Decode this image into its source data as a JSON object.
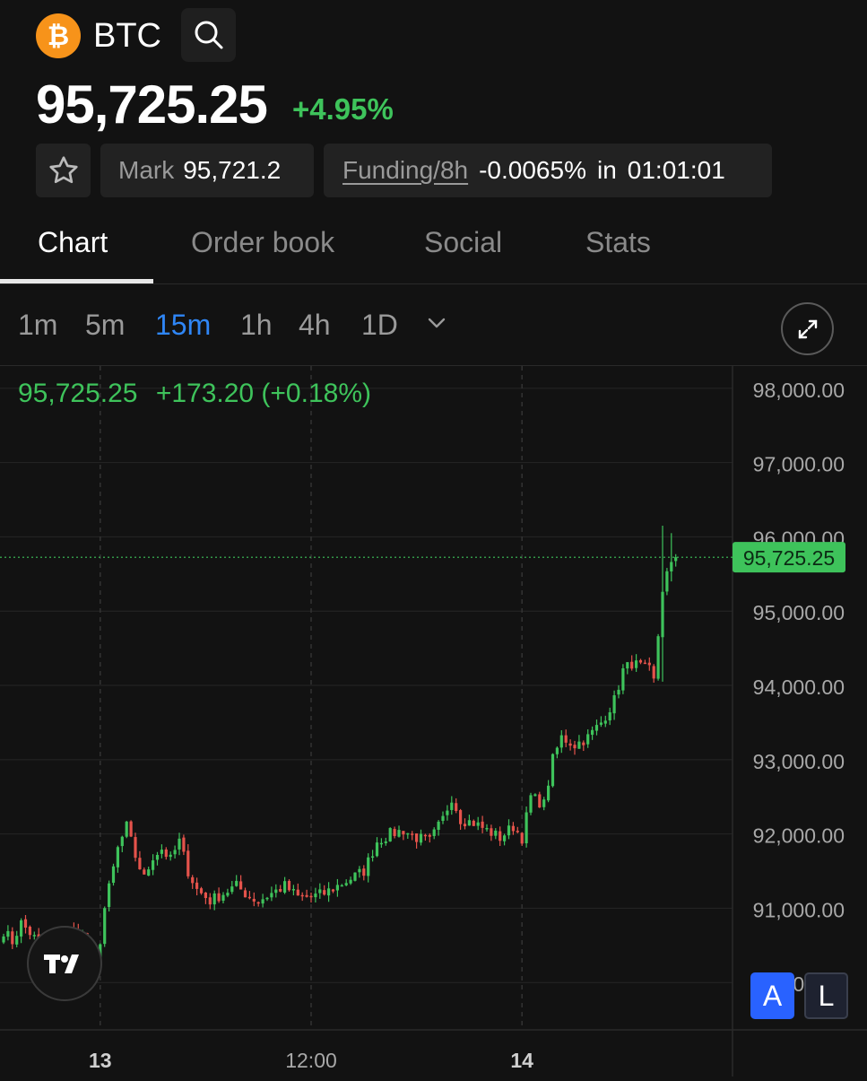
{
  "header": {
    "symbol": "BTC",
    "coin_icon": "bitcoin-icon",
    "search_icon": "search-icon"
  },
  "price": {
    "last": "95,725.25",
    "change_pct": "+4.95%"
  },
  "info": {
    "favorite_icon": "star-icon",
    "mark_label": "Mark",
    "mark_value": "95,721.2",
    "funding_label": "Funding/8h",
    "funding_value": "-0.0065%",
    "funding_in": "in",
    "funding_countdown": "01:01:01"
  },
  "tabs": [
    {
      "label": "Chart",
      "active": true
    },
    {
      "label": "Order book",
      "active": false
    },
    {
      "label": "Social",
      "active": false
    },
    {
      "label": "Stats",
      "active": false
    }
  ],
  "timeframes": [
    {
      "label": "1m",
      "active": false
    },
    {
      "label": "5m",
      "active": false
    },
    {
      "label": "15m",
      "active": true
    },
    {
      "label": "1h",
      "active": false
    },
    {
      "label": "4h",
      "active": false
    },
    {
      "label": "1D",
      "active": false
    }
  ],
  "timeframe_more_icon": "chevron-down-icon",
  "expand_icon": "expand-icon",
  "legend": {
    "price": "95,725.25",
    "change": "+173.20 (+0.18%)"
  },
  "scale_buttons": {
    "auto": "A",
    "log": "L"
  },
  "colors": {
    "up": "#3ec35b",
    "down": "#e5534b",
    "accent": "#2f86f6",
    "background": "#121212"
  },
  "chart_data": {
    "type": "candlestick",
    "interval": "15m",
    "y_ticks": [
      "98,000.00",
      "97,000.00",
      "96,000.00",
      "95,000.00",
      "94,000.00",
      "93,000.00",
      "92,000.00",
      "91,000.00",
      "90,000.00"
    ],
    "y_tick_values": [
      98000,
      97000,
      96000,
      95000,
      94000,
      93000,
      92000,
      91000,
      90000
    ],
    "ylim": [
      89000,
      98300
    ],
    "x_ticks": [
      {
        "label": "13",
        "bold": true,
        "index": 22
      },
      {
        "label": "12:00",
        "bold": false,
        "index": 70
      },
      {
        "label": "14",
        "bold": true,
        "index": 118
      }
    ],
    "last_price_label": "95,725.25",
    "last_price": 95725.25,
    "grid": true,
    "candle_count": 154,
    "anchors": [
      [
        0,
        90700
      ],
      [
        2,
        90550
      ],
      [
        4,
        90800
      ],
      [
        7,
        90600
      ],
      [
        9,
        90500
      ],
      [
        11,
        90450
      ],
      [
        14,
        90700
      ],
      [
        17,
        90650
      ],
      [
        19,
        90600
      ],
      [
        21,
        90150
      ],
      [
        23,
        91000
      ],
      [
        26,
        91800
      ],
      [
        28,
        92100
      ],
      [
        30,
        91700
      ],
      [
        32,
        91400
      ],
      [
        34,
        91700
      ],
      [
        36,
        91800
      ],
      [
        38,
        91650
      ],
      [
        40,
        91900
      ],
      [
        42,
        91500
      ],
      [
        44,
        91250
      ],
      [
        47,
        91100
      ],
      [
        50,
        91200
      ],
      [
        53,
        91300
      ],
      [
        56,
        91150
      ],
      [
        58,
        91100
      ],
      [
        61,
        91200
      ],
      [
        64,
        91300
      ],
      [
        67,
        91150
      ],
      [
        70,
        91150
      ],
      [
        73,
        91200
      ],
      [
        76,
        91300
      ],
      [
        79,
        91400
      ],
      [
        82,
        91500
      ],
      [
        85,
        91900
      ],
      [
        88,
        92000
      ],
      [
        91,
        92050
      ],
      [
        94,
        91950
      ],
      [
        97,
        91900
      ],
      [
        100,
        92200
      ],
      [
        102,
        92500
      ],
      [
        104,
        92200
      ],
      [
        107,
        92150
      ],
      [
        110,
        92050
      ],
      [
        113,
        91950
      ],
      [
        116,
        92100
      ],
      [
        118,
        91950
      ],
      [
        120,
        92500
      ],
      [
        123,
        92400
      ],
      [
        125,
        93000
      ],
      [
        127,
        93300
      ],
      [
        130,
        93200
      ],
      [
        133,
        93300
      ],
      [
        136,
        93500
      ],
      [
        139,
        93800
      ],
      [
        141,
        94200
      ],
      [
        143,
        94300
      ],
      [
        145,
        94250
      ],
      [
        147,
        94200
      ],
      [
        148,
        94050
      ],
      [
        150,
        95300
      ],
      [
        151,
        95500
      ],
      [
        152,
        95600
      ],
      [
        153,
        95725.25
      ]
    ],
    "spikes": [
      {
        "index": 150,
        "high": 96150,
        "low": 94050
      },
      {
        "index": 152,
        "high": 96050,
        "low": 95400
      }
    ]
  }
}
